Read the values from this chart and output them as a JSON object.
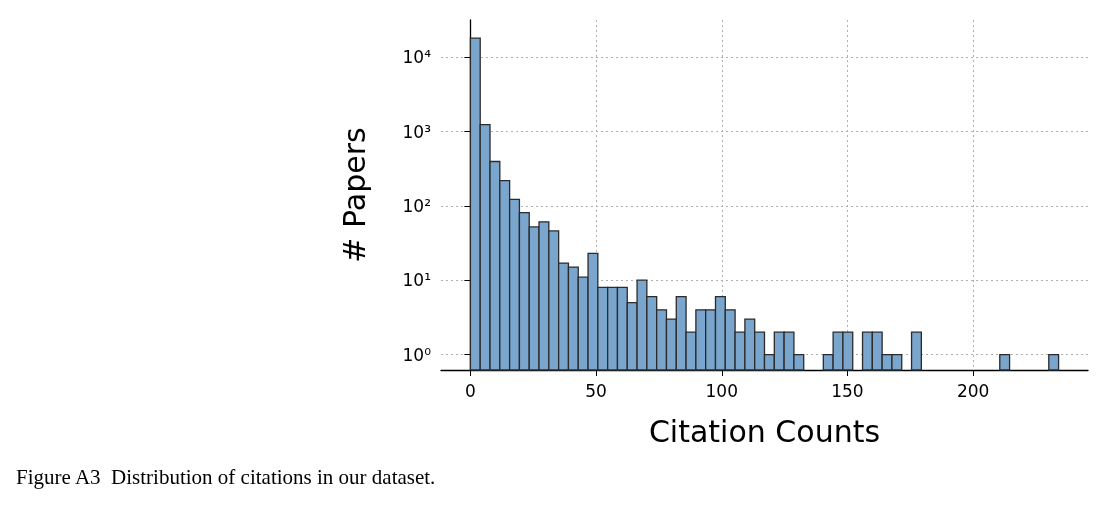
{
  "chart_data": {
    "type": "histogram",
    "xlabel": "Citation Counts",
    "ylabel": "# Papers",
    "bins": [
      0,
      3.9,
      7.8,
      11.7,
      15.6,
      19.5,
      23.4,
      27.3,
      31.2,
      35.1,
      39,
      42.9,
      46.8,
      50.7,
      54.6,
      58.5,
      62.4,
      66.3,
      70.2,
      74.1,
      78,
      81.9,
      85.8,
      89.7,
      93.6,
      97.5,
      101.4,
      105.3,
      109.2,
      113.1,
      117,
      120.9,
      124.8,
      128.7,
      132.6,
      136.5,
      140.4,
      144.3,
      148.2,
      152.1,
      156,
      159.9,
      163.8,
      167.7,
      171.6,
      175.5,
      179.4,
      183.3,
      187.2,
      191.1,
      195,
      198.9,
      202.8,
      206.7,
      210.6,
      214.5,
      218.4,
      222.3,
      226.2,
      230.1,
      234
    ],
    "values": [
      18000,
      1240,
      395,
      219,
      122,
      81,
      52,
      61,
      46,
      17,
      15,
      11,
      23,
      8,
      8,
      8,
      5,
      10,
      6,
      4,
      3,
      6,
      2,
      4,
      4,
      6,
      4,
      2,
      3,
      2,
      1,
      2,
      2,
      1,
      null,
      null,
      1,
      2,
      2,
      null,
      2,
      2,
      1,
      1,
      null,
      2,
      null,
      null,
      null,
      null,
      null,
      null,
      null,
      null,
      1,
      null,
      null,
      null,
      null,
      1
    ],
    "color": "#7aa5cc",
    "log": "y",
    "grid": true,
    "xlim": [
      -11.7,
      245.7
    ],
    "xticks": [
      0,
      50,
      100,
      150,
      200
    ],
    "ylim": [
      0.62,
      31600
    ],
    "yticks": [
      {
        "value": 1,
        "label": "10⁰"
      },
      {
        "value": 10,
        "label": "10¹"
      },
      {
        "value": 100,
        "label": "10²"
      },
      {
        "value": 1000,
        "label": "10³"
      },
      {
        "value": 10000,
        "label": "10⁴"
      }
    ],
    "annotations": [
      "Figure A3  Distribution of citations in our dataset."
    ]
  }
}
